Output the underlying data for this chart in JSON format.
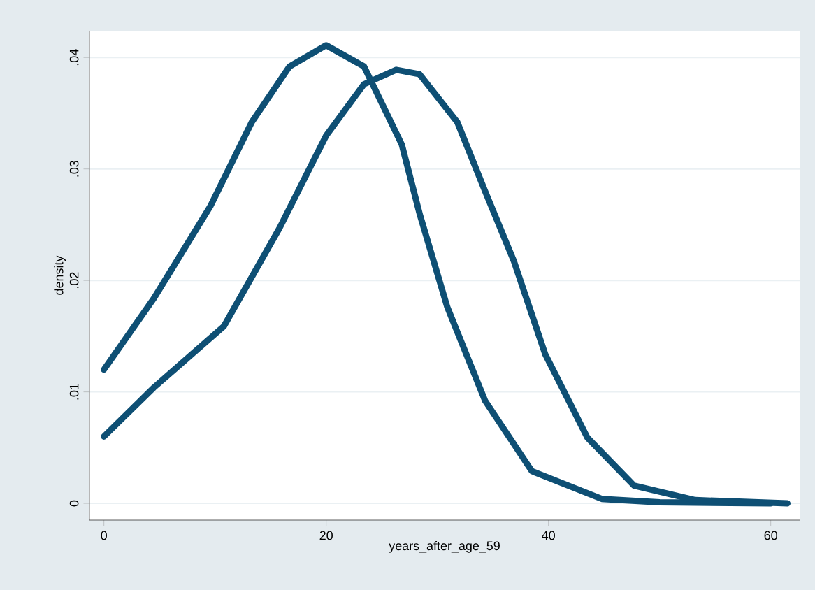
{
  "chart_data": {
    "type": "line",
    "xlabel": "years_after_age_59",
    "ylabel": "density",
    "xlim": [
      -1.3,
      62.6
    ],
    "ylim": [
      -0.0015,
      0.0424
    ],
    "xticks": [
      0,
      20,
      40,
      60
    ],
    "yticks": [
      {
        "value": 0,
        "label": "0"
      },
      {
        "value": 0.01,
        "label": ".01"
      },
      {
        "value": 0.02,
        "label": ".02"
      },
      {
        "value": 0.03,
        "label": ".03"
      },
      {
        "value": 0.04,
        "label": ".04"
      }
    ],
    "grid": "y",
    "marker": "none",
    "line_style": "solid",
    "series": [
      {
        "color": "#0e4f74",
        "x": [
          0,
          4.5,
          9.6,
          13.3,
          16.7,
          20,
          23.4,
          26.8,
          28.4,
          30.9,
          34.3,
          38.5,
          44.8,
          50,
          60
        ],
        "values": [
          0.012,
          0.0184,
          0.0267,
          0.0342,
          0.0392,
          0.0411,
          0.0392,
          0.0322,
          0.026,
          0.0176,
          0.0092,
          0.0029,
          0.0004,
          0.0001,
          0
        ]
      },
      {
        "color": "#0e4f74",
        "x": [
          0,
          4.5,
          10.8,
          15.8,
          20,
          23.4,
          26.3,
          28.4,
          31.8,
          34.3,
          36.9,
          39.7,
          43.5,
          47.7,
          53.2,
          61.5
        ],
        "values": [
          0.006,
          0.0104,
          0.0159,
          0.0247,
          0.033,
          0.0376,
          0.0389,
          0.0385,
          0.0342,
          0.028,
          0.0217,
          0.0134,
          0.0059,
          0.0016,
          0.0003,
          0
        ]
      }
    ]
  }
}
